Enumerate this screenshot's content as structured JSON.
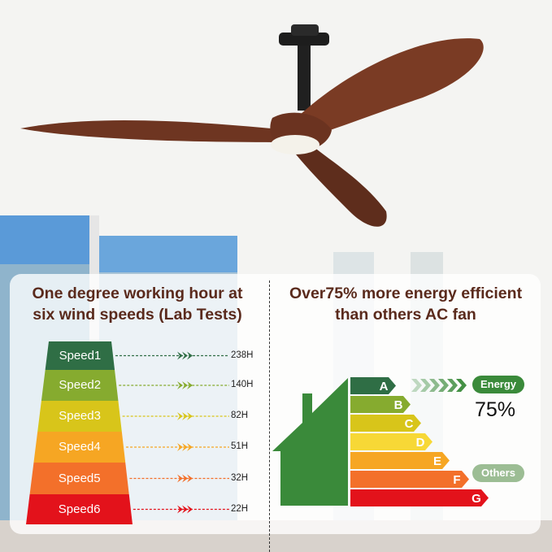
{
  "left_panel": {
    "heading_line1": "One degree working hour at",
    "heading_line2": "six wind speeds (Lab Tests)",
    "speeds": [
      {
        "label": "Speed1",
        "hours": "238H",
        "color": "#2f6e45"
      },
      {
        "label": "Speed2",
        "hours": "140H",
        "color": "#86ab2f"
      },
      {
        "label": "Speed3",
        "hours": "82H",
        "color": "#d8c51a"
      },
      {
        "label": "Speed4",
        "hours": "51H",
        "color": "#f6a623"
      },
      {
        "label": "Speed5",
        "hours": "32H",
        "color": "#f3702a"
      },
      {
        "label": "Speed6",
        "hours": "22H",
        "color": "#e3121b"
      }
    ]
  },
  "right_panel": {
    "heading_line1": "Over75% more energy efficient",
    "heading_line2": "than others AC fan",
    "ratings": [
      {
        "label": "A",
        "color": "#2f6e45"
      },
      {
        "label": "B",
        "color": "#86ab2f"
      },
      {
        "label": "C",
        "color": "#d8c51a"
      },
      {
        "label": "D",
        "color": "#f7d836"
      },
      {
        "label": "E",
        "color": "#f6a623"
      },
      {
        "label": "F",
        "color": "#f3702a"
      },
      {
        "label": "G",
        "color": "#e3121b"
      }
    ],
    "house_color": "#3a8a3a",
    "energy_label": "Energy",
    "energy_percent": "75%",
    "others_label": "Others"
  }
}
